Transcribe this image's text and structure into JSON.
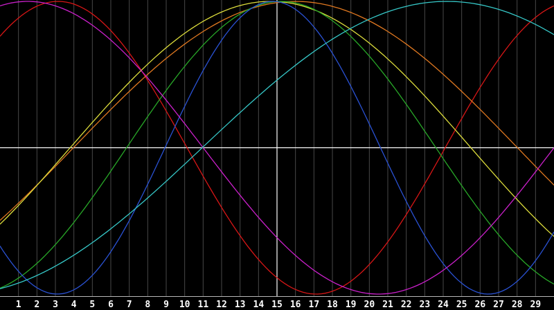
{
  "chart_data": {
    "type": "line",
    "title": "",
    "background_color": "#000000",
    "plot": {
      "function": "y = amplitude * cos(2*PI*(x - peak_x) / period)",
      "x_min": 0,
      "x_max": 30,
      "y_min": -1,
      "y_max": 1
    },
    "x_axis": {
      "tick_step": 1,
      "tick_labels": [
        "1",
        "2",
        "3",
        "4",
        "5",
        "6",
        "7",
        "8",
        "9",
        "10",
        "11",
        "12",
        "13",
        "14",
        "15",
        "16",
        "17",
        "18",
        "19",
        "20",
        "21",
        "22",
        "23",
        "24",
        "25",
        "26",
        "27",
        "28",
        "29"
      ],
      "axis_line_color": "#b8b8b8",
      "label_color": "#ffffff"
    },
    "y_axis": {
      "labels_visible": false
    },
    "grid": {
      "vertical": true,
      "horizontal": false,
      "color": "#484848"
    },
    "reference_lines": {
      "horizontal_zero_line_y": 0,
      "vertical_center_line_x": 15,
      "color": "#ffffff"
    },
    "legend": "none",
    "series": [
      {
        "name": "red",
        "color": "#d81616",
        "period": 27.96,
        "peak_x": 3.14,
        "amplitude": 1
      },
      {
        "name": "orange",
        "color": "#e07820",
        "period": 48.1,
        "peak_x": 16.0,
        "amplitude": 1
      },
      {
        "name": "yellow",
        "color": "#dede3c",
        "period": 43.4,
        "peak_x": 14.65,
        "amplitude": 1
      },
      {
        "name": "green",
        "color": "#28a828",
        "period": 33.5,
        "peak_x": 15.23,
        "amplitude": 1
      },
      {
        "name": "blue",
        "color": "#2a52d4",
        "period": 23.34,
        "peak_x": 14.77,
        "amplitude": 1
      },
      {
        "name": "magenta",
        "color": "#cc20cc",
        "period": 38.0,
        "peak_x": 1.5,
        "amplitude": 1
      },
      {
        "name": "cyan",
        "color": "#36c8c8",
        "period": 53.0,
        "peak_x": 24.2,
        "amplitude": 1
      }
    ]
  }
}
